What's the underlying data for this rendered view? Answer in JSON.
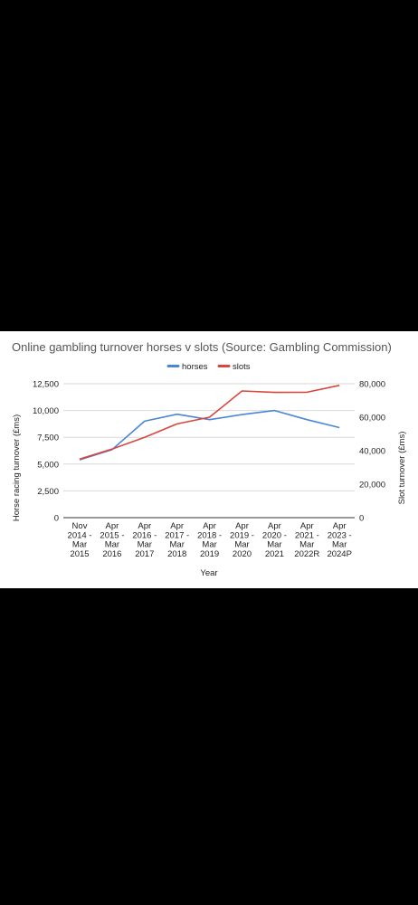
{
  "chart_data": {
    "type": "line",
    "title": "Online gambling turnover horses v slots (Source: Gambling Commission)",
    "xlabel": "Year",
    "ylabel_left": "Horse racing turnover (£ms)",
    "ylabel_right": "Slot turnover (£ms)",
    "categories": [
      [
        "Nov",
        "2014 -",
        "Mar",
        "2015"
      ],
      [
        "Apr",
        "2015 -",
        "Mar",
        "2016"
      ],
      [
        "Apr",
        "2016 -",
        "Mar",
        "2017"
      ],
      [
        "Apr",
        "2017 -",
        "Mar",
        "2018"
      ],
      [
        "Apr",
        "2018 -",
        "Mar",
        "2019"
      ],
      [
        "Apr",
        "2019 -",
        "Mar",
        "2020"
      ],
      [
        "Apr",
        "2020 -",
        "Mar",
        "2021"
      ],
      [
        "Apr",
        "2021 -",
        "Mar",
        "2022R"
      ],
      [
        "Apr",
        "2023 -",
        "Mar",
        "2024P"
      ]
    ],
    "ylim_left": [
      0,
      12500
    ],
    "yticks_left": [
      "0",
      "2,500",
      "5,000",
      "7,500",
      "10,000",
      "12,500"
    ],
    "ylim_right": [
      0,
      80000
    ],
    "yticks_right": [
      "0",
      "20,000",
      "40,000",
      "60,000",
      "80,000"
    ],
    "legend_position": "top",
    "grid": true,
    "series": [
      {
        "name": "horses",
        "axis": "left",
        "color": "#4a86d6",
        "values": [
          5400,
          6350,
          9000,
          9650,
          9150,
          9620,
          10000,
          9150,
          8400
        ]
      },
      {
        "name": "slots",
        "axis": "right",
        "color": "#d9463b",
        "values": [
          35000,
          41000,
          48000,
          56000,
          60000,
          75700,
          74800,
          74900,
          79000
        ]
      }
    ]
  }
}
